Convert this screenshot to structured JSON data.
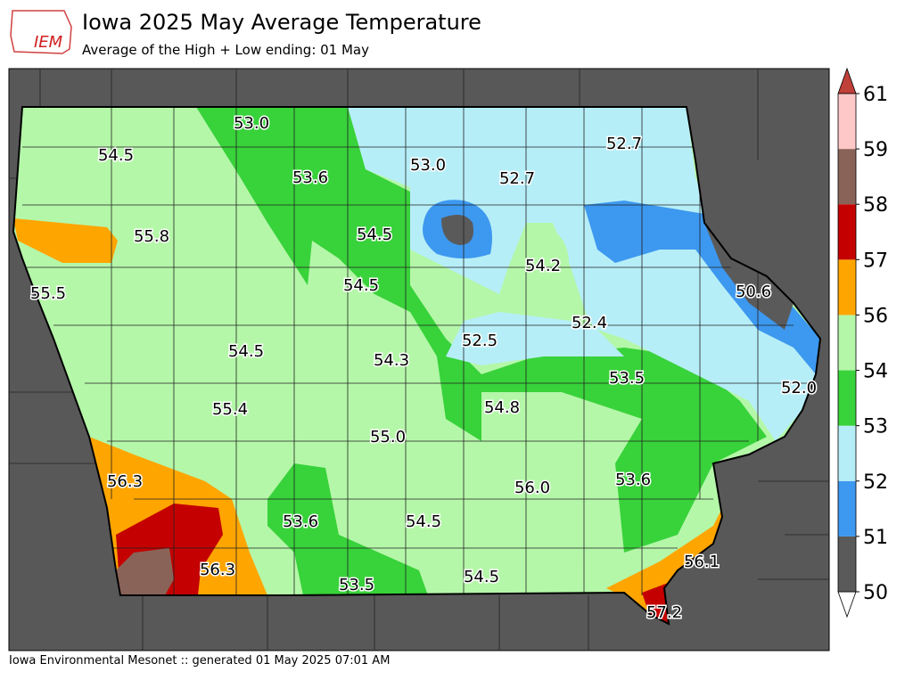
{
  "header": {
    "logo": "IEM",
    "title": "Iowa 2025 May Average Temperature",
    "subtitle": "Average of the High + Low ending: 01 May"
  },
  "colorbar": {
    "levels": [
      50,
      51,
      52,
      53,
      54,
      56,
      57,
      58,
      59,
      61
    ],
    "colors": [
      "#5a5a5a",
      "#3d98ef",
      "#b6eef8",
      "#38d23a",
      "#b4f7a8",
      "#ffa500",
      "#c40000",
      "#8a6358",
      "#ffc8c8"
    ]
  },
  "map": {
    "labels": [
      "53.0",
      "54.5",
      "53.6",
      "53.0",
      "52.7",
      "52.7",
      "55.8",
      "54.5",
      "54.2",
      "55.5",
      "54.5",
      "50.6",
      "52.4",
      "52.5",
      "54.5",
      "54.3",
      "53.5",
      "52.0",
      "55.4",
      "54.8",
      "55.0",
      "56.3",
      "53.6",
      "56.0",
      "53.6",
      "54.5",
      "56.3",
      "56.1",
      "53.5",
      "54.5",
      "57.2"
    ]
  },
  "footer": {
    "text": "Iowa Environmental Mesonet :: generated 01 May 2025 07:01 AM"
  }
}
